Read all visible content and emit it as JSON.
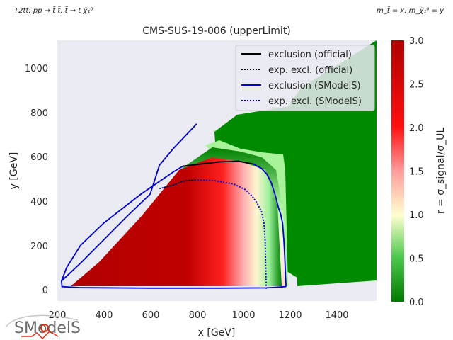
{
  "corner_left": "T2tt: pp → t̃ t̃, t̃ → t χ̃₁⁰",
  "corner_right": "m_t̃ = x, m_χ̃₁⁰ = y",
  "logo_text": "SModelS",
  "colors": {
    "axes_bg": "#eaeaf2",
    "official": "#000000",
    "smodels": "#0000cc"
  },
  "chart_data": {
    "type": "heatmap",
    "title": "CMS-SUS-19-006 (upperLimit)",
    "xlabel": "x [GeV]",
    "ylabel": "y [GeV]",
    "xlim": [
      200,
      1575
    ],
    "ylim": [
      -50,
      1120
    ],
    "xticks": [
      200,
      400,
      600,
      800,
      1000,
      1200,
      1400
    ],
    "yticks": [
      0,
      200,
      400,
      600,
      800,
      1000
    ],
    "colorbar": {
      "label": "r = σ_signal/σ_UL",
      "range": [
        0.0,
        3.0
      ],
      "ticks": [
        "0.0",
        "0.5",
        "1.0",
        "1.5",
        "2.0",
        "2.5",
        "3.0"
      ]
    },
    "grid": false,
    "legend_placement": "top-right",
    "legend": [
      {
        "label": "exclusion (official)",
        "color": "#000000",
        "style": "solid"
      },
      {
        "label": "exp. excl. (official)",
        "color": "#000000",
        "style": "dotted"
      },
      {
        "label": "exclusion (SModelS)",
        "color": "#0000cc",
        "style": "solid"
      },
      {
        "label": "exp. excl. (SModelS)",
        "color": "#0000cc",
        "style": "dotted"
      }
    ],
    "series": [
      {
        "name": "exclusion (SModelS)",
        "points": [
          [
            1185,
            15
          ],
          [
            1183,
            60
          ],
          [
            1180,
            140
          ],
          [
            1176,
            220
          ],
          [
            1170,
            300
          ],
          [
            1162,
            340
          ],
          [
            1152,
            370
          ],
          [
            1140,
            420
          ],
          [
            1122,
            480
          ],
          [
            1102,
            520
          ],
          [
            1080,
            545
          ],
          [
            1045,
            565
          ],
          [
            980,
            578
          ],
          [
            900,
            575
          ],
          [
            840,
            568
          ],
          [
            740,
            555
          ],
          [
            700,
            530
          ],
          [
            560,
            430
          ],
          [
            400,
            300
          ],
          [
            300,
            200
          ],
          [
            240,
            100
          ],
          [
            218,
            40
          ],
          [
            220,
            15
          ],
          [
            300,
            10
          ],
          [
            600,
            8
          ],
          [
            900,
            8
          ],
          [
            1100,
            9
          ],
          [
            1185,
            15
          ]
        ]
      },
      {
        "name": "exp. excl. (SModelS)",
        "points": [
          [
            1100,
            5
          ],
          [
            1098,
            100
          ],
          [
            1095,
            220
          ],
          [
            1090,
            300
          ],
          [
            1080,
            350
          ],
          [
            1060,
            390
          ],
          [
            1040,
            420
          ],
          [
            1010,
            450
          ],
          [
            960,
            475
          ],
          [
            880,
            490
          ],
          [
            800,
            495
          ],
          [
            740,
            488
          ],
          [
            700,
            470
          ],
          [
            660,
            460
          ],
          [
            640,
            455
          ]
        ]
      },
      {
        "name": "exclusion (official)",
        "points": [
          [
            740,
            555
          ],
          [
            840,
            568
          ],
          [
            900,
            575
          ],
          [
            980,
            578
          ],
          [
            1045,
            565
          ]
        ]
      },
      {
        "name": "exp. excl. (official)",
        "points": [
          [
            660,
            460
          ],
          [
            700,
            470
          ],
          [
            740,
            488
          ],
          [
            800,
            495
          ]
        ]
      },
      {
        "name": "diagonal edge (SModelS)",
        "points": [
          [
            218,
            40
          ],
          [
            300,
            120
          ],
          [
            400,
            225
          ],
          [
            500,
            330
          ],
          [
            600,
            430
          ],
          [
            640,
            560
          ],
          [
            700,
            635
          ],
          [
            800,
            745
          ]
        ]
      }
    ]
  }
}
